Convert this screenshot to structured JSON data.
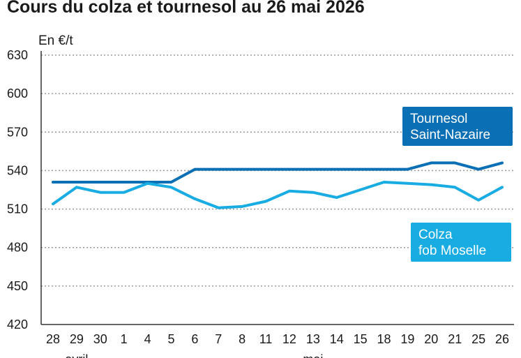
{
  "chart_data": {
    "type": "line",
    "title": "Cours du colza et tournesol au 26 mai 2026",
    "ylabel": "En €/t",
    "xlabel": "",
    "ylim": [
      420,
      630
    ],
    "yticks": [
      630,
      600,
      570,
      540,
      510,
      480,
      450,
      420
    ],
    "categories": [
      "28",
      "29",
      "30",
      "1",
      "4",
      "5",
      "6",
      "7",
      "8",
      "11",
      "12",
      "13",
      "14",
      "15",
      "18",
      "19",
      "20",
      "21",
      "25",
      "26"
    ],
    "months": [
      {
        "label": "avril",
        "start": 0,
        "end": 2
      },
      {
        "label": "mai",
        "start": 3,
        "end": 19
      }
    ],
    "grid": true,
    "series": [
      {
        "name": "Tournesol Saint-Nazaire",
        "label_lines": [
          "Tournesol",
          "Saint-Nazaire"
        ],
        "color": "#0a6fb4",
        "values": [
          531,
          531,
          531,
          531,
          531,
          531,
          541,
          541,
          541,
          541,
          541,
          541,
          541,
          541,
          541,
          541,
          546,
          546,
          541,
          546
        ]
      },
      {
        "name": "Colza fob Moselle",
        "label_lines": [
          "Colza",
          "fob Moselle"
        ],
        "color": "#19ace3",
        "values": [
          514,
          527,
          523,
          523,
          530,
          527,
          518,
          511,
          512,
          516,
          524,
          523,
          519,
          525,
          531,
          530,
          529,
          527,
          517,
          527
        ]
      }
    ]
  }
}
